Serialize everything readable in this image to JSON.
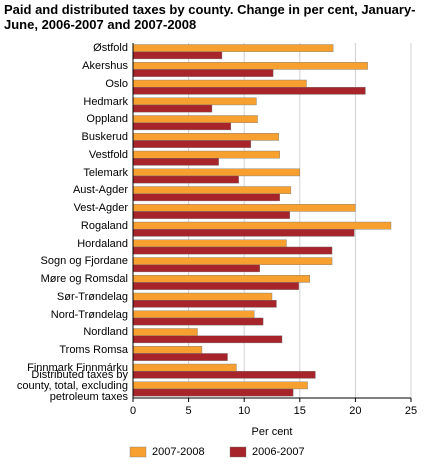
{
  "chart_data": {
    "type": "hbar",
    "title": "Paid and distributed taxes by county. Change in per cent, January-June, 2006-2007 and 2007-2008",
    "xlabel": "Per cent",
    "categories": [
      "Østfold",
      "Akershus",
      "Oslo",
      "Hedmark",
      "Oppland",
      "Buskerud",
      "Vestfold",
      "Telemark",
      "Aust-Agder",
      "Vest-Agder",
      "Rogaland",
      "Hordaland",
      "Sogn og Fjordane",
      "Møre og Romsdal",
      "Sør-Trøndelag",
      "Nord-Trøndelag",
      "Nordland",
      "Troms Romsa",
      "Finnmark Finnmárku",
      "Distributed taxes by county, total, excluding petroleum taxes"
    ],
    "series": [
      {
        "name": "2007-2008",
        "color": "#f7a030",
        "values": [
          18.0,
          21.1,
          15.6,
          11.1,
          11.2,
          13.1,
          13.2,
          15.0,
          14.2,
          20.0,
          23.2,
          13.8,
          17.9,
          15.9,
          12.5,
          10.9,
          5.8,
          6.2,
          9.3,
          15.7
        ]
      },
      {
        "name": "2006-2007",
        "color": "#a6242a",
        "values": [
          8.0,
          12.6,
          20.9,
          7.1,
          8.8,
          10.6,
          7.7,
          9.5,
          13.2,
          14.1,
          19.9,
          17.9,
          11.4,
          14.9,
          12.9,
          11.7,
          13.4,
          8.5,
          16.4,
          14.4
        ]
      }
    ],
    "xlim": [
      0,
      25
    ],
    "xticks": [
      0,
      5,
      10,
      15,
      20,
      25
    ],
    "grid": true
  }
}
